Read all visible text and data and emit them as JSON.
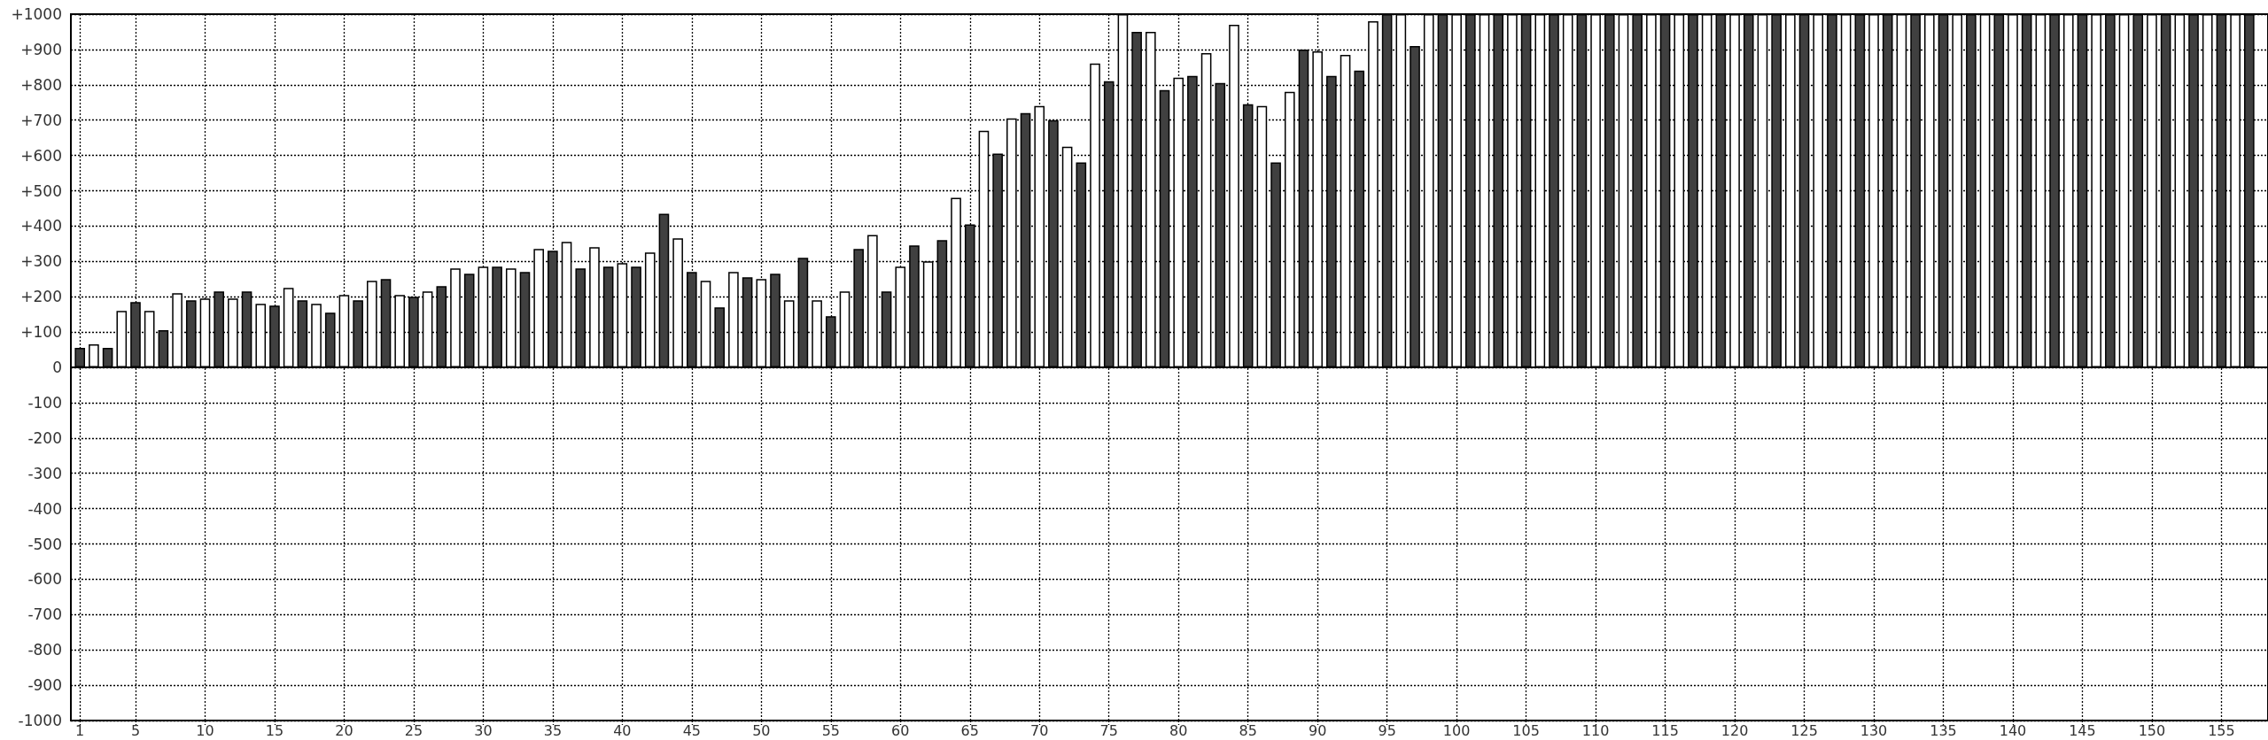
{
  "chart_data": {
    "type": "bar",
    "x": [
      1,
      2,
      3,
      4,
      5,
      6,
      7,
      8,
      9,
      10,
      11,
      12,
      13,
      14,
      15,
      16,
      17,
      18,
      19,
      20,
      21,
      22,
      23,
      24,
      25,
      26,
      27,
      28,
      29,
      30,
      31,
      32,
      33,
      34,
      35,
      36,
      37,
      38,
      39,
      40,
      41,
      42,
      43,
      44,
      45,
      46,
      47,
      48,
      49,
      50,
      51,
      52,
      53,
      54,
      55,
      56,
      57,
      58,
      59,
      60,
      61,
      62,
      63,
      64,
      65,
      66,
      67,
      68,
      69,
      70,
      71,
      72,
      73,
      74,
      75,
      76,
      77,
      78,
      79,
      80,
      81,
      82,
      83,
      84,
      85,
      86,
      87,
      88,
      89,
      90,
      91,
      92,
      93,
      94,
      95,
      96,
      97,
      98,
      99,
      100,
      101,
      102,
      103,
      104,
      105,
      106,
      107,
      108,
      109,
      110,
      111,
      112,
      113,
      114,
      115,
      116,
      117,
      118,
      119,
      120,
      121,
      122,
      123,
      124,
      125,
      126,
      127,
      128,
      129,
      130,
      131,
      132,
      133,
      134,
      135,
      136,
      137,
      138,
      139,
      140,
      141,
      142,
      143,
      144,
      145,
      146,
      147,
      148,
      149,
      150,
      151,
      152,
      153,
      154,
      155,
      156,
      157
    ],
    "values": [
      55,
      65,
      55,
      160,
      185,
      160,
      105,
      210,
      190,
      195,
      215,
      195,
      215,
      180,
      175,
      225,
      190,
      180,
      155,
      205,
      190,
      245,
      250,
      205,
      200,
      215,
      230,
      280,
      265,
      285,
      285,
      280,
      270,
      335,
      330,
      355,
      280,
      340,
      285,
      295,
      285,
      325,
      435,
      365,
      270,
      245,
      170,
      270,
      255,
      250,
      265,
      190,
      310,
      190,
      145,
      215,
      335,
      375,
      215,
      285,
      345,
      300,
      360,
      480,
      405,
      670,
      605,
      705,
      720,
      740,
      700,
      625,
      580,
      860,
      810,
      1000,
      950,
      950,
      785,
      820,
      825,
      890,
      805,
      970,
      745,
      740,
      580,
      780,
      900,
      895,
      825,
      885,
      840,
      980,
      1000,
      1000,
      910,
      1000,
      1000,
      1000,
      1000,
      1000,
      1000,
      1000,
      1000,
      1000,
      1000,
      1000,
      1000,
      1000,
      1000,
      1000,
      1000,
      1000,
      1000,
      1000,
      1000,
      1000,
      1000,
      1000,
      1000,
      1000,
      1000,
      1000,
      1000,
      1000,
      1000,
      1000,
      1000,
      1000,
      1000,
      1000,
      1000,
      1000,
      1000,
      1000,
      1000,
      1000,
      1000,
      1000,
      1000,
      1000,
      1000,
      1000,
      1000,
      1000,
      1000,
      1000,
      1000,
      1000,
      1000,
      1000,
      1000,
      1000,
      1000,
      1000,
      1000
    ],
    "colors": [
      "#404040",
      "#ffffff",
      "#404040",
      "#ffffff",
      "#404040",
      "#ffffff",
      "#404040",
      "#ffffff",
      "#404040",
      "#ffffff",
      "#404040",
      "#ffffff",
      "#404040",
      "#ffffff",
      "#404040",
      "#ffffff",
      "#404040",
      "#ffffff",
      "#404040",
      "#ffffff",
      "#404040",
      "#ffffff",
      "#404040",
      "#ffffff",
      "#404040",
      "#ffffff",
      "#404040",
      "#ffffff",
      "#404040",
      "#ffffff",
      "#404040",
      "#ffffff",
      "#404040",
      "#ffffff",
      "#404040",
      "#ffffff",
      "#404040",
      "#ffffff",
      "#404040",
      "#ffffff",
      "#404040",
      "#ffffff",
      "#404040",
      "#ffffff",
      "#404040",
      "#ffffff",
      "#404040",
      "#ffffff",
      "#404040",
      "#ffffff",
      "#404040",
      "#ffffff",
      "#404040",
      "#ffffff",
      "#404040",
      "#ffffff",
      "#404040",
      "#ffffff",
      "#404040",
      "#ffffff",
      "#404040",
      "#ffffff",
      "#404040",
      "#ffffff",
      "#404040",
      "#ffffff",
      "#404040",
      "#ffffff",
      "#404040",
      "#ffffff",
      "#404040",
      "#ffffff",
      "#404040",
      "#ffffff",
      "#404040",
      "#ffffff",
      "#404040",
      "#ffffff",
      "#404040",
      "#ffffff",
      "#404040",
      "#ffffff",
      "#404040",
      "#ffffff",
      "#404040",
      "#ffffff",
      "#404040",
      "#ffffff",
      "#404040",
      "#ffffff",
      "#404040",
      "#ffffff",
      "#404040",
      "#ffffff",
      "#404040",
      "#ffffff",
      "#404040",
      "#ffffff",
      "#404040",
      "#ffffff",
      "#404040",
      "#ffffff",
      "#404040",
      "#ffffff",
      "#404040",
      "#ffffff",
      "#404040",
      "#ffffff",
      "#404040",
      "#ffffff",
      "#404040",
      "#ffffff",
      "#404040",
      "#ffffff",
      "#404040",
      "#ffffff",
      "#404040",
      "#ffffff",
      "#404040",
      "#ffffff",
      "#404040",
      "#ffffff",
      "#404040",
      "#ffffff",
      "#404040",
      "#ffffff",
      "#404040",
      "#ffffff",
      "#404040",
      "#ffffff",
      "#404040",
      "#ffffff",
      "#404040",
      "#ffffff",
      "#404040",
      "#ffffff",
      "#404040",
      "#ffffff",
      "#404040",
      "#ffffff",
      "#404040",
      "#ffffff",
      "#404040",
      "#ffffff",
      "#404040",
      "#ffffff",
      "#404040",
      "#ffffff",
      "#404040",
      "#ffffff",
      "#404040",
      "#ffffff",
      "#404040",
      "#ffffff",
      "#404040",
      "#ffffff",
      "#404040"
    ],
    "xlim": [
      0.35,
      158.35
    ],
    "xticks": [
      1,
      5,
      10,
      15,
      20,
      25,
      30,
      35,
      40,
      45,
      50,
      55,
      60,
      65,
      70,
      75,
      80,
      85,
      90,
      95,
      100,
      105,
      110,
      115,
      120,
      125,
      130,
      135,
      140,
      145,
      150,
      155
    ],
    "ylim": [
      -1000,
      1000
    ],
    "yticks": [
      -1000,
      -900,
      -800,
      -700,
      -600,
      -500,
      -400,
      -300,
      -200,
      -100,
      0,
      {
        "value": 100,
        "label": "+100"
      },
      {
        "value": 200,
        "label": "+200"
      },
      {
        "value": 300,
        "label": "+300"
      },
      {
        "value": 400,
        "label": "+400"
      },
      {
        "value": 500,
        "label": "+500"
      },
      {
        "value": 600,
        "label": "+600"
      },
      {
        "value": 700,
        "label": "+700"
      },
      {
        "value": 800,
        "label": "+800"
      },
      {
        "value": 900,
        "label": "+900"
      },
      {
        "value": 1000,
        "label": "+1000"
      }
    ],
    "grid": true
  }
}
